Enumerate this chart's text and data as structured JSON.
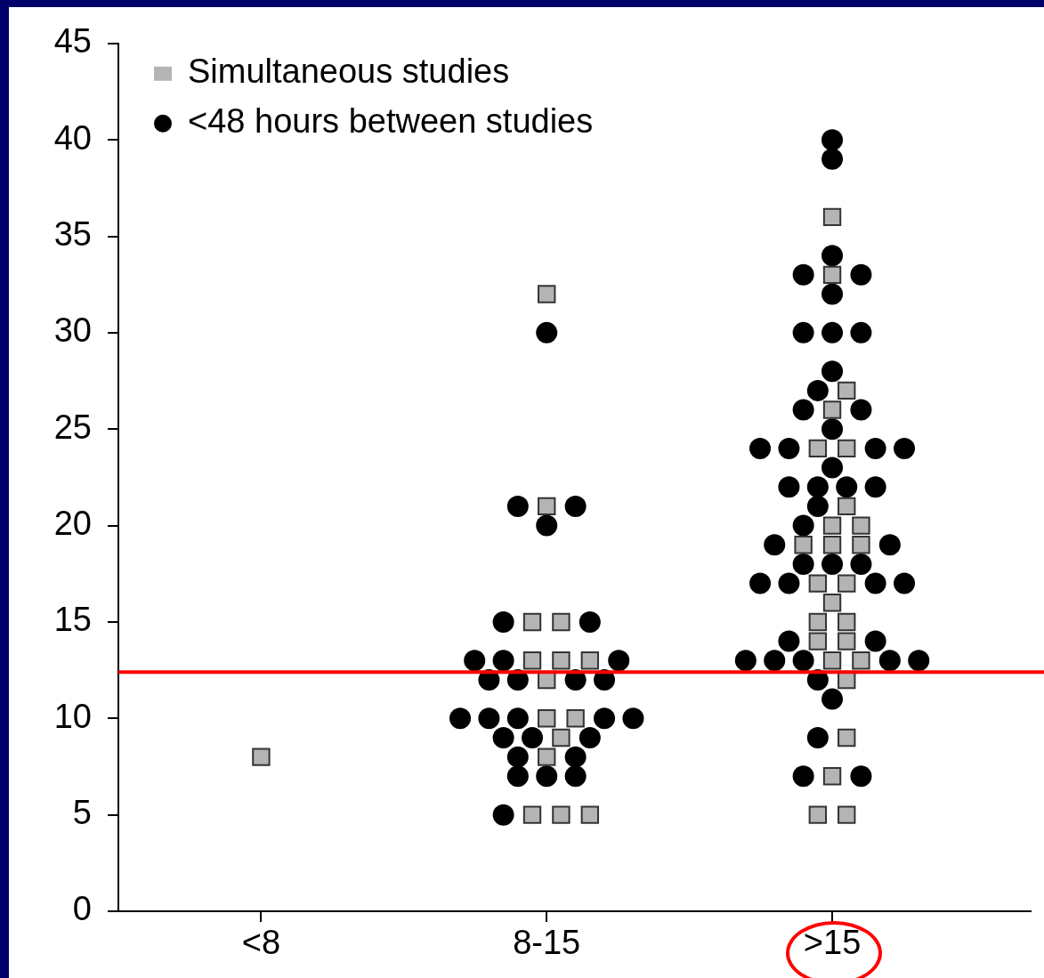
{
  "chart_data": {
    "type": "scatter",
    "categories": [
      "<8",
      "8-15",
      ">15"
    ],
    "ylim": [
      0,
      45
    ],
    "yticks": [
      0,
      5,
      10,
      15,
      20,
      25,
      30,
      35,
      40,
      45
    ],
    "grid": false,
    "legend": "top left",
    "ref_lines": [
      {
        "axis": "y",
        "value": 12.4,
        "color": "#ff0000"
      }
    ],
    "series": [
      {
        "name": "Simultaneous studies",
        "color": "#b4b4b4",
        "marker": "square",
        "x": [
          "<8",
          "8-15",
          "8-15",
          "8-15",
          "8-15",
          "8-15",
          "8-15",
          "8-15",
          "8-15",
          "8-15",
          "8-15",
          "8-15",
          "8-15",
          "8-15",
          "8-15",
          "8-15",
          ">15",
          ">15",
          ">15",
          ">15",
          ">15",
          ">15",
          ">15",
          ">15",
          ">15",
          ">15",
          ">15",
          ">15",
          ">15",
          ">15",
          ">15",
          ">15",
          ">15",
          ">15",
          ">15",
          ">15",
          ">15",
          ">15",
          ">15",
          ">15",
          ">15",
          ">15"
        ],
        "values": [
          8,
          32,
          21,
          15,
          15,
          13,
          13,
          13,
          12,
          10,
          10,
          9,
          8,
          5,
          5,
          5,
          36,
          33,
          27,
          26,
          24,
          24,
          21,
          20,
          20,
          19,
          19,
          19,
          17,
          17,
          16,
          15,
          15,
          14,
          14,
          13,
          13,
          12,
          9,
          7,
          5,
          5
        ]
      },
      {
        "name": "<48 hours between studies",
        "color": "#000000",
        "marker": "circle",
        "x": [
          "8-15",
          "8-15",
          "8-15",
          "8-15",
          "8-15",
          "8-15",
          "8-15",
          "8-15",
          "8-15",
          "8-15",
          "8-15",
          "8-15",
          "8-15",
          "8-15",
          "8-15",
          "8-15",
          "8-15",
          "8-15",
          "8-15",
          "8-15",
          "8-15",
          "8-15",
          "8-15",
          "8-15",
          "8-15",
          "8-15",
          "8-15",
          ">15",
          ">15",
          ">15",
          ">15",
          ">15",
          ">15",
          ">15",
          ">15",
          ">15",
          ">15",
          ">15",
          ">15",
          ">15",
          ">15",
          ">15",
          ">15",
          ">15",
          ">15",
          ">15",
          ">15",
          ">15",
          ">15",
          ">15",
          ">15",
          ">15",
          ">15",
          ">15",
          ">15",
          ">15",
          ">15",
          ">15",
          ">15",
          ">15",
          ">15",
          ">15",
          ">15",
          ">15",
          ">15",
          ">15",
          ">15",
          ">15",
          ">15",
          ">15",
          ">15",
          ">15",
          ">15"
        ],
        "values": [
          30,
          21,
          21,
          20,
          15,
          15,
          13,
          13,
          13,
          12,
          12,
          12,
          12,
          10,
          10,
          10,
          10,
          10,
          9,
          9,
          9,
          8,
          8,
          7,
          7,
          7,
          5,
          40,
          39,
          34,
          33,
          33,
          32,
          30,
          30,
          30,
          28,
          27,
          26,
          26,
          25,
          24,
          24,
          24,
          24,
          23,
          22,
          22,
          22,
          22,
          21,
          20,
          19,
          19,
          18,
          18,
          18,
          17,
          17,
          17,
          17,
          14,
          14,
          13,
          13,
          13,
          13,
          13,
          12,
          11,
          9,
          7,
          7
        ]
      }
    ]
  }
}
